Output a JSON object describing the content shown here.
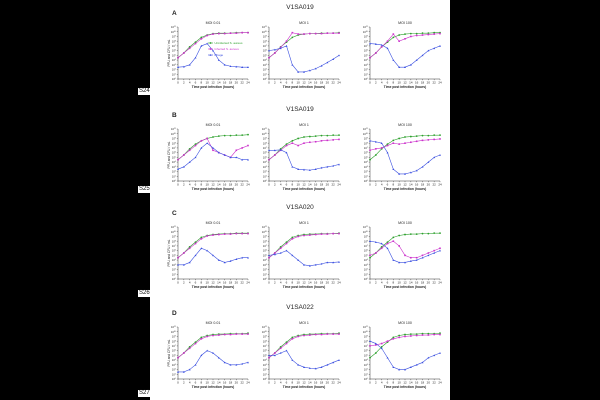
{
  "figure_labels": [
    "S24",
    "S25",
    "S26",
    "S27"
  ],
  "rows": [
    {
      "letter": "A",
      "title": "V1SA019"
    },
    {
      "letter": "B",
      "title": "V1SA019"
    },
    {
      "letter": "C",
      "title": "V1SA020"
    },
    {
      "letter": "D",
      "title": "V1SA022"
    }
  ],
  "legend": {
    "position": "inside top-right of panel A1",
    "items": [
      {
        "label": "Uninfected S. aureus",
        "color": "#2ca02c",
        "marker": "circle"
      },
      {
        "label": "Infected S. aureus",
        "color": "#cc33cc",
        "marker": "square"
      },
      {
        "label": "Phage",
        "color": "#3a4fe0",
        "marker": "triangle"
      }
    ]
  },
  "axis": {
    "ylabel": "PFU and CFU / mL",
    "xlabel": "Time post infection (hours)",
    "xticks": [
      0,
      2,
      4,
      6,
      8,
      10,
      12,
      14,
      16,
      18,
      20,
      22,
      24
    ],
    "yticks_exp": [
      0,
      1,
      2,
      3,
      4,
      5,
      6,
      7,
      8,
      9,
      10,
      11
    ],
    "ytick_base": "10",
    "yscale": "log10",
    "xlim": [
      0,
      24
    ],
    "ylim_exp": [
      0,
      11
    ]
  },
  "colors": {
    "uninfected": "#2ca02c",
    "infected": "#cc33cc",
    "phage": "#3a4fe0",
    "axis": "#333333"
  },
  "chart_data": [
    {
      "type": "line",
      "row": 0,
      "col": 0,
      "title": "MOI 0.01",
      "x": [
        0,
        2,
        4,
        6,
        8,
        10,
        12,
        14,
        16,
        18,
        20,
        22,
        24
      ],
      "series": [
        {
          "name": "Uninfected S. aureus",
          "values": [
            4.5,
            5.5,
            6.8,
            7.8,
            8.8,
            9.3,
            9.6,
            9.7,
            9.7,
            9.7,
            9.8,
            9.8,
            9.8
          ]
        },
        {
          "name": "Infected S. aureus",
          "values": [
            4.5,
            5.5,
            6.5,
            7.5,
            8.5,
            9.2,
            9.5,
            9.6,
            9.6,
            9.7,
            9.7,
            9.8,
            9.8
          ]
        },
        {
          "name": "Phage",
          "values": [
            2.5,
            2.6,
            3,
            4.5,
            7,
            7.5,
            6,
            4,
            3,
            2.7,
            2.6,
            2.5,
            2.5
          ]
        }
      ]
    },
    {
      "type": "line",
      "row": 0,
      "col": 1,
      "title": "MOI 1",
      "x": [
        0,
        2,
        4,
        6,
        8,
        10,
        12,
        14,
        16,
        18,
        20,
        22,
        24
      ],
      "series": [
        {
          "name": "Uninfected S. aureus",
          "values": [
            4.5,
            5.5,
            6.8,
            7.8,
            8.8,
            9.3,
            9.5,
            9.6,
            9.6,
            9.7,
            9.7,
            9.7,
            9.8
          ]
        },
        {
          "name": "Infected S. aureus",
          "values": [
            4.5,
            5.5,
            6.7,
            8,
            9.8,
            9.5,
            9.5,
            9.6,
            9.6,
            9.6,
            9.7,
            9.7,
            9.7
          ]
        },
        {
          "name": "Phage",
          "values": [
            6,
            6.2,
            6.5,
            7,
            3,
            1.5,
            1.5,
            1.8,
            2.2,
            2.8,
            3.5,
            4.2,
            5
          ]
        }
      ]
    },
    {
      "type": "line",
      "row": 0,
      "col": 2,
      "title": "MOI 100",
      "x": [
        0,
        2,
        4,
        6,
        8,
        10,
        12,
        14,
        16,
        18,
        20,
        22,
        24
      ],
      "series": [
        {
          "name": "Uninfected S. aureus",
          "values": [
            4.5,
            5.5,
            6.8,
            7.8,
            8.8,
            9.3,
            9.5,
            9.6,
            9.6,
            9.7,
            9.7,
            9.8,
            9.8
          ]
        },
        {
          "name": "Infected S. aureus",
          "values": [
            4.5,
            5.5,
            6.8,
            8,
            9.5,
            8,
            8.5,
            9,
            9.2,
            9.3,
            9.4,
            9.5,
            9.6
          ]
        },
        {
          "name": "Phage",
          "values": [
            7.5,
            7.4,
            7.2,
            6.5,
            4,
            2.5,
            2.5,
            3,
            4,
            5,
            6,
            6.5,
            7
          ]
        }
      ]
    },
    {
      "type": "line",
      "row": 1,
      "col": 0,
      "title": "MOI 0.01",
      "x": [
        0,
        2,
        4,
        6,
        8,
        10,
        12,
        14,
        16,
        18,
        20,
        22,
        24
      ],
      "series": [
        {
          "name": "Uninfected S. aureus",
          "values": [
            4.5,
            5.5,
            6.8,
            7.8,
            8.5,
            9,
            9.3,
            9.5,
            9.6,
            9.6,
            9.7,
            9.7,
            9.8
          ]
        },
        {
          "name": "Infected S. aureus",
          "values": [
            4.5,
            5.5,
            6.5,
            7.5,
            8.5,
            9,
            6.5,
            6,
            5.5,
            5,
            6.5,
            7,
            7.5
          ]
        },
        {
          "name": "Phage",
          "values": [
            2.5,
            3,
            4,
            5,
            7,
            8,
            7,
            6,
            5.5,
            5,
            5,
            4.5,
            4.5
          ]
        }
      ]
    },
    {
      "type": "line",
      "row": 1,
      "col": 1,
      "title": "MOI 1",
      "x": [
        0,
        2,
        4,
        6,
        8,
        10,
        12,
        14,
        16,
        18,
        20,
        22,
        24
      ],
      "series": [
        {
          "name": "Uninfected S. aureus",
          "values": [
            4.5,
            5.5,
            6.8,
            7.8,
            8.5,
            9,
            9.3,
            9.4,
            9.5,
            9.6,
            9.6,
            9.7,
            9.7
          ]
        },
        {
          "name": "Infected S. aureus",
          "values": [
            4.5,
            5.5,
            6.5,
            7.5,
            8,
            7.5,
            8,
            8.2,
            8.3,
            8.5,
            8.6,
            8.7,
            8.8
          ]
        },
        {
          "name": "Phage",
          "values": [
            6.5,
            6.5,
            6.6,
            6,
            3,
            2.5,
            2.4,
            2.3,
            2.5,
            2.8,
            3,
            3.2,
            3.5
          ]
        }
      ]
    },
    {
      "type": "line",
      "row": 1,
      "col": 2,
      "title": "MOI 100",
      "x": [
        0,
        2,
        4,
        6,
        8,
        10,
        12,
        14,
        16,
        18,
        20,
        22,
        24
      ],
      "series": [
        {
          "name": "Uninfected S. aureus",
          "values": [
            4.5,
            5.5,
            6.8,
            7.8,
            8.6,
            9,
            9.3,
            9.4,
            9.5,
            9.6,
            9.6,
            9.7,
            9.7
          ]
        },
        {
          "name": "Infected S. aureus",
          "values": [
            6.5,
            6.8,
            7,
            7.5,
            8,
            7.8,
            8,
            8.2,
            8.4,
            8.6,
            8.7,
            8.8,
            8.9
          ]
        },
        {
          "name": "Phage",
          "values": [
            8.5,
            8.3,
            8,
            6,
            2.5,
            1.5,
            1.5,
            1.8,
            2.2,
            3,
            4,
            5,
            5.5
          ]
        }
      ]
    },
    {
      "type": "line",
      "row": 2,
      "col": 0,
      "title": "MOI 0.01",
      "x": [
        0,
        2,
        4,
        6,
        8,
        10,
        12,
        14,
        16,
        18,
        20,
        22,
        24
      ],
      "series": [
        {
          "name": "Uninfected S. aureus",
          "values": [
            4.5,
            5.5,
            6.8,
            7.8,
            8.8,
            9.2,
            9.4,
            9.5,
            9.6,
            9.6,
            9.7,
            9.7,
            9.7
          ]
        },
        {
          "name": "Infected S. aureus",
          "values": [
            4.5,
            5.5,
            6.5,
            7.5,
            8.5,
            9.1,
            9.3,
            9.4,
            9.5,
            9.5,
            9.6,
            9.6,
            9.6
          ]
        },
        {
          "name": "Phage",
          "values": [
            3,
            3,
            3.5,
            5,
            6.5,
            6,
            5,
            4,
            3.5,
            3.8,
            4.2,
            4.5,
            4.5
          ]
        }
      ]
    },
    {
      "type": "line",
      "row": 2,
      "col": 1,
      "title": "MOI 1",
      "x": [
        0,
        2,
        4,
        6,
        8,
        10,
        12,
        14,
        16,
        18,
        20,
        22,
        24
      ],
      "series": [
        {
          "name": "Uninfected S. aureus",
          "values": [
            4.5,
            5.5,
            6.8,
            7.8,
            8.8,
            9.2,
            9.4,
            9.5,
            9.5,
            9.6,
            9.6,
            9.6,
            9.7
          ]
        },
        {
          "name": "Infected S. aureus",
          "values": [
            4.5,
            5.5,
            6.5,
            7.5,
            8.5,
            9,
            9.2,
            9.3,
            9.4,
            9.5,
            9.5,
            9.6,
            9.6
          ]
        },
        {
          "name": "Phage",
          "values": [
            5,
            5.2,
            5.5,
            6,
            5,
            4,
            3,
            2.8,
            3,
            3.2,
            3.5,
            3.5,
            3.6
          ]
        }
      ]
    },
    {
      "type": "line",
      "row": 2,
      "col": 2,
      "title": "MOI 100",
      "x": [
        0,
        2,
        4,
        6,
        8,
        10,
        12,
        14,
        16,
        18,
        20,
        22,
        24
      ],
      "series": [
        {
          "name": "Uninfected S. aureus",
          "values": [
            4.5,
            5.5,
            6.8,
            7.8,
            8.8,
            9.2,
            9.4,
            9.5,
            9.5,
            9.6,
            9.6,
            9.7,
            9.7
          ]
        },
        {
          "name": "Infected S. aureus",
          "values": [
            5,
            5.5,
            6.5,
            7.5,
            8,
            7,
            5,
            4.5,
            4.5,
            5,
            5.5,
            6,
            6.5
          ]
        },
        {
          "name": "Phage",
          "values": [
            8,
            7.8,
            7.5,
            6.5,
            4,
            3.5,
            3.5,
            3.8,
            4,
            4.5,
            5,
            5.5,
            6
          ]
        }
      ]
    },
    {
      "type": "line",
      "row": 3,
      "col": 0,
      "title": "MOI 0.01",
      "x": [
        0,
        2,
        4,
        6,
        8,
        10,
        12,
        14,
        16,
        18,
        20,
        22,
        24
      ],
      "series": [
        {
          "name": "Uninfected S. aureus",
          "values": [
            4.5,
            5.5,
            6.8,
            7.8,
            8.8,
            9.2,
            9.4,
            9.5,
            9.5,
            9.6,
            9.6,
            9.6,
            9.7
          ]
        },
        {
          "name": "Infected S. aureus",
          "values": [
            4.5,
            5.5,
            6.5,
            7.5,
            8.5,
            9,
            9.2,
            9.3,
            9.4,
            9.4,
            9.5,
            9.5,
            9.5
          ]
        },
        {
          "name": "Phage",
          "values": [
            1.5,
            1.5,
            2,
            3,
            5,
            6,
            5.5,
            4.5,
            3.5,
            3,
            3,
            3.2,
            3.5
          ]
        }
      ]
    },
    {
      "type": "line",
      "row": 3,
      "col": 1,
      "title": "MOI 1",
      "x": [
        0,
        2,
        4,
        6,
        8,
        10,
        12,
        14,
        16,
        18,
        20,
        22,
        24
      ],
      "series": [
        {
          "name": "Uninfected S. aureus",
          "values": [
            4.5,
            5.5,
            6.8,
            7.8,
            8.8,
            9.2,
            9.4,
            9.5,
            9.5,
            9.6,
            9.6,
            9.6,
            9.7
          ]
        },
        {
          "name": "Infected S. aureus",
          "values": [
            4.5,
            5.5,
            6.5,
            7.5,
            8.5,
            9,
            9.2,
            9.3,
            9.4,
            9.4,
            9.5,
            9.5,
            9.5
          ]
        },
        {
          "name": "Phage",
          "values": [
            5,
            5,
            5.5,
            6,
            4,
            3,
            2.5,
            2.3,
            2.2,
            2.5,
            3,
            3.5,
            4
          ]
        }
      ]
    },
    {
      "type": "line",
      "row": 3,
      "col": 2,
      "title": "MOI 100",
      "x": [
        0,
        2,
        4,
        6,
        8,
        10,
        12,
        14,
        16,
        18,
        20,
        22,
        24
      ],
      "series": [
        {
          "name": "Uninfected S. aureus",
          "values": [
            4.5,
            5.5,
            6.8,
            7.8,
            8.8,
            9.2,
            9.4,
            9.5,
            9.5,
            9.6,
            9.6,
            9.6,
            9.7
          ]
        },
        {
          "name": "Infected S. aureus",
          "values": [
            7,
            7.2,
            7.5,
            8,
            8.5,
            8.8,
            9,
            9.1,
            9.2,
            9.3,
            9.3,
            9.4,
            9.4
          ]
        },
        {
          "name": "Phage",
          "values": [
            8,
            7.5,
            6.5,
            4.5,
            2.5,
            2,
            2,
            2.5,
            3,
            3.5,
            4.5,
            5,
            5.5
          ]
        }
      ]
    }
  ]
}
